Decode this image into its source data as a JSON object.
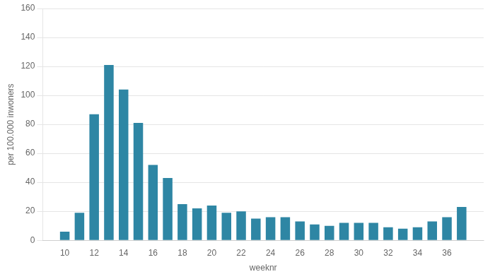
{
  "chart_data": {
    "type": "bar",
    "x": [
      10,
      11,
      12,
      13,
      14,
      15,
      16,
      17,
      18,
      19,
      20,
      21,
      22,
      23,
      24,
      25,
      26,
      27,
      28,
      29,
      30,
      31,
      32,
      33,
      34,
      35,
      36,
      37
    ],
    "values": [
      6,
      19,
      87,
      121,
      104,
      81,
      52,
      43,
      25,
      22,
      24,
      19,
      20,
      15,
      16,
      16,
      13,
      11,
      10,
      12,
      12,
      12,
      9,
      8,
      9,
      13,
      16,
      23
    ],
    "color": "#2e86a4",
    "xlabel": "weeknr",
    "ylabel": "per 100.000 inwoners",
    "xlim": [
      8.5,
      38.5
    ],
    "xticks": [
      10,
      12,
      14,
      16,
      18,
      20,
      22,
      24,
      26,
      28,
      30,
      32,
      34,
      36
    ],
    "ylim": [
      0,
      160
    ],
    "yticks": [
      0,
      20,
      40,
      60,
      80,
      100,
      120,
      140,
      160
    ],
    "grid": "y"
  }
}
